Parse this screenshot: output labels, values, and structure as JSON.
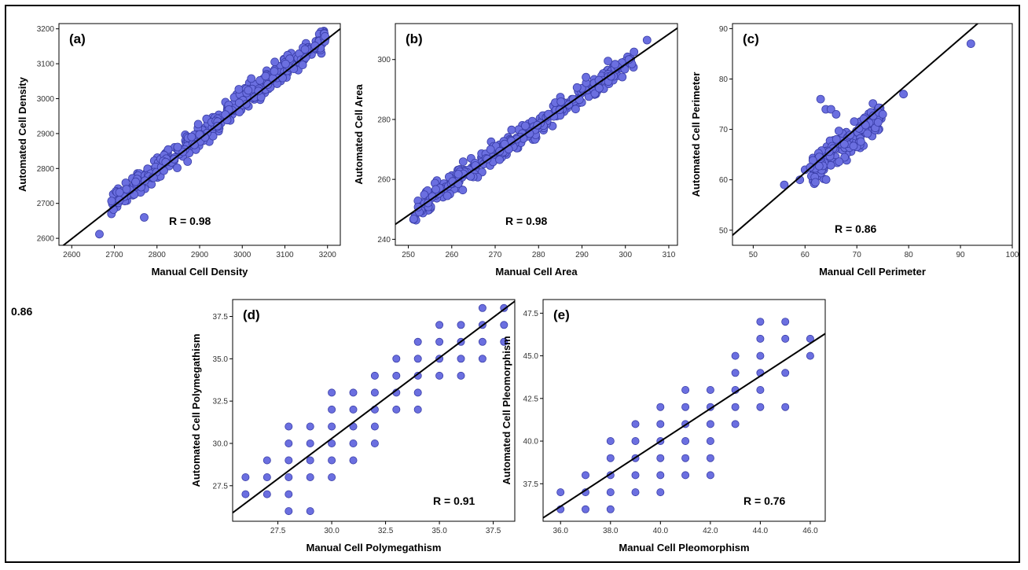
{
  "stray_text": "0.86",
  "colors": {
    "point_fill": "#6b6fe0",
    "point_stroke": "#3a3ea8",
    "line": "#000000",
    "frame": "#000000"
  },
  "chart_data": [
    {
      "type": "scatter",
      "panel": "(a)",
      "xlabel": "Manual Cell Density",
      "ylabel": "Automated Cell Density",
      "xlim": [
        2570,
        3230
      ],
      "ylim": [
        2580,
        3215
      ],
      "xticks": [
        2600,
        2700,
        2800,
        2900,
        3000,
        3100,
        3200
      ],
      "yticks": [
        2600,
        2700,
        2800,
        2900,
        3000,
        3100,
        3200
      ],
      "fit_line": [
        [
          2570,
          2570
        ],
        [
          3230,
          3200
        ]
      ],
      "r_label": "R = 0.98",
      "generator": {
        "kind": "dense",
        "n": 380,
        "x_range": [
          2690,
          3195
        ],
        "slope": 0.96,
        "intercept": 110,
        "noise": 18,
        "seed": 1
      },
      "extra_points": [
        [
          2665,
          2612
        ],
        [
          2770,
          2660
        ]
      ]
    },
    {
      "type": "scatter",
      "panel": "(b)",
      "xlabel": "Manual Cell Area",
      "ylabel": "Automated Cell Area",
      "xlim": [
        247,
        312
      ],
      "ylim": [
        238,
        312
      ],
      "xticks": [
        250,
        260,
        270,
        280,
        290,
        300,
        310
      ],
      "yticks": [
        240,
        260,
        280,
        300
      ],
      "fit_line": [
        [
          247,
          245
        ],
        [
          312,
          310.5
        ]
      ],
      "r_label": "R = 0.98",
      "generator": {
        "kind": "dense",
        "n": 340,
        "x_range": [
          251,
          302
        ],
        "slope": 1.0,
        "intercept": -1.5,
        "noise": 1.8,
        "seed": 2
      },
      "extra_points": [
        [
          305,
          306.5
        ],
        [
          296,
          299.5
        ]
      ]
    },
    {
      "type": "scatter",
      "panel": "(c)",
      "xlabel": "Manual Cell Perimeter",
      "ylabel": "Automated Cell Perimeter",
      "xlim": [
        46,
        100
      ],
      "ylim": [
        47,
        91
      ],
      "xticks": [
        50,
        60,
        70,
        80,
        90,
        100
      ],
      "yticks": [
        50,
        60,
        70,
        80,
        90
      ],
      "fit_line": [
        [
          46,
          49
        ],
        [
          95,
          92.5
        ]
      ],
      "r_label": "R = 0.86",
      "generator": {
        "kind": "dense",
        "n": 160,
        "x_range": [
          61,
          75
        ],
        "slope": 0.8,
        "intercept": 13,
        "noise": 1.6,
        "seed": 3
      },
      "extra_points": [
        [
          56,
          59
        ],
        [
          59,
          60
        ],
        [
          60,
          62
        ],
        [
          61,
          62.5
        ],
        [
          63,
          76
        ],
        [
          64,
          74
        ],
        [
          65,
          74
        ],
        [
          66,
          73
        ],
        [
          79,
          77
        ],
        [
          92,
          87
        ],
        [
          62,
          59.5
        ],
        [
          75,
          73
        ]
      ]
    },
    {
      "type": "scatter",
      "panel": "(d)",
      "xlabel": "Manual Cell Polymegathism",
      "ylabel": "Automated Cell Polymegathism",
      "xlim": [
        25.4,
        38.5
      ],
      "ylim": [
        25.4,
        38.5
      ],
      "xticks": [
        27.5,
        30.0,
        32.5,
        35.0,
        37.5
      ],
      "yticks": [
        27.5,
        30.0,
        32.5,
        35.0,
        37.5
      ],
      "tick_decimals": 1,
      "fit_line": [
        [
          25.4,
          25.9
        ],
        [
          38.5,
          38.4
        ]
      ],
      "r_label": "R = 0.91",
      "points": [
        [
          26,
          27
        ],
        [
          26,
          28
        ],
        [
          27,
          27
        ],
        [
          27,
          28
        ],
        [
          27,
          29
        ],
        [
          28,
          26
        ],
        [
          28,
          27
        ],
        [
          28,
          28
        ],
        [
          28,
          29
        ],
        [
          28,
          30
        ],
        [
          28,
          31
        ],
        [
          29,
          26
        ],
        [
          29,
          28
        ],
        [
          29,
          29
        ],
        [
          29,
          30
        ],
        [
          29,
          31
        ],
        [
          30,
          28
        ],
        [
          30,
          29
        ],
        [
          30,
          30
        ],
        [
          30,
          31
        ],
        [
          30,
          32
        ],
        [
          30,
          33
        ],
        [
          31,
          29
        ],
        [
          31,
          30
        ],
        [
          31,
          31
        ],
        [
          31,
          32
        ],
        [
          31,
          33
        ],
        [
          32,
          30
        ],
        [
          32,
          31
        ],
        [
          32,
          32
        ],
        [
          32,
          33
        ],
        [
          32,
          34
        ],
        [
          33,
          32
        ],
        [
          33,
          33
        ],
        [
          33,
          34
        ],
        [
          33,
          35
        ],
        [
          34,
          32
        ],
        [
          34,
          33
        ],
        [
          34,
          34
        ],
        [
          34,
          35
        ],
        [
          34,
          36
        ],
        [
          35,
          34
        ],
        [
          35,
          35
        ],
        [
          35,
          36
        ],
        [
          35,
          37
        ],
        [
          36,
          34
        ],
        [
          36,
          35
        ],
        [
          36,
          36
        ],
        [
          36,
          37
        ],
        [
          37,
          35
        ],
        [
          37,
          36
        ],
        [
          37,
          37
        ],
        [
          37,
          38
        ],
        [
          38,
          36
        ],
        [
          38,
          37
        ],
        [
          38,
          38
        ]
      ]
    },
    {
      "type": "scatter",
      "panel": "(e)",
      "xlabel": "Manual Cell Pleomorphism",
      "ylabel": "Automated Cell Pleomorphism",
      "xlim": [
        35.3,
        46.6
      ],
      "ylim": [
        35.3,
        48.3
      ],
      "xticks": [
        36,
        38,
        40,
        42,
        44,
        46
      ],
      "yticks": [
        37.5,
        40.0,
        42.5,
        45.0,
        47.5
      ],
      "tick_decimals": 1,
      "fit_line": [
        [
          35.3,
          35.5
        ],
        [
          46.6,
          46.3
        ]
      ],
      "r_label": "R = 0.76",
      "points": [
        [
          36,
          36
        ],
        [
          36,
          37
        ],
        [
          37,
          36
        ],
        [
          37,
          37
        ],
        [
          37,
          38
        ],
        [
          38,
          36
        ],
        [
          38,
          37
        ],
        [
          38,
          38
        ],
        [
          38,
          39
        ],
        [
          38,
          40
        ],
        [
          39,
          37
        ],
        [
          39,
          38
        ],
        [
          39,
          39
        ],
        [
          39,
          40
        ],
        [
          39,
          41
        ],
        [
          40,
          37
        ],
        [
          40,
          38
        ],
        [
          40,
          39
        ],
        [
          40,
          40
        ],
        [
          40,
          41
        ],
        [
          40,
          42
        ],
        [
          41,
          38
        ],
        [
          41,
          39
        ],
        [
          41,
          40
        ],
        [
          41,
          41
        ],
        [
          41,
          42
        ],
        [
          41,
          43
        ],
        [
          42,
          38
        ],
        [
          42,
          39
        ],
        [
          42,
          40
        ],
        [
          42,
          41
        ],
        [
          42,
          42
        ],
        [
          42,
          43
        ],
        [
          43,
          41
        ],
        [
          43,
          42
        ],
        [
          43,
          43
        ],
        [
          43,
          44
        ],
        [
          43,
          45
        ],
        [
          44,
          42
        ],
        [
          44,
          43
        ],
        [
          44,
          44
        ],
        [
          44,
          45
        ],
        [
          44,
          46
        ],
        [
          44,
          47
        ],
        [
          45,
          42
        ],
        [
          45,
          44
        ],
        [
          45,
          46
        ],
        [
          45,
          47
        ],
        [
          46,
          45
        ],
        [
          46,
          46
        ]
      ]
    }
  ]
}
